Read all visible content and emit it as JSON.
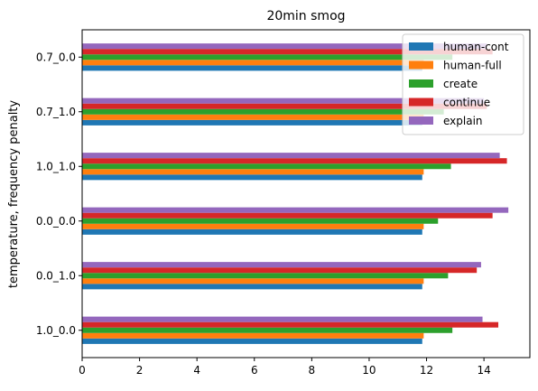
{
  "chart_data": {
    "type": "bar",
    "orientation": "horizontal",
    "title": "20min smog",
    "xlabel": "",
    "ylabel": "temperature, frequency penalty",
    "xlim": [
      0,
      15.6
    ],
    "xticks": [
      0,
      2,
      4,
      6,
      8,
      10,
      12,
      14
    ],
    "categories": [
      "1.0_0.0",
      "0.0_1.0",
      "0.0_0.0",
      "1.0_1.0",
      "0.7_1.0",
      "0.7_0.0"
    ],
    "series": [
      {
        "name": "human-cont",
        "color": "#1f77b4",
        "values": [
          11.85,
          11.85,
          11.85,
          11.85,
          11.85,
          11.85
        ]
      },
      {
        "name": "human-full",
        "color": "#ff7f0e",
        "values": [
          11.9,
          11.9,
          11.9,
          11.9,
          11.9,
          11.9
        ]
      },
      {
        "name": "create",
        "color": "#2ca02c",
        "values": [
          12.9,
          12.75,
          12.4,
          12.85,
          12.6,
          12.9
        ]
      },
      {
        "name": "continue",
        "color": "#d62728",
        "values": [
          14.5,
          13.75,
          14.3,
          14.8,
          14.1,
          14.3
        ]
      },
      {
        "name": "explain",
        "color": "#9467bd",
        "values": [
          13.95,
          13.9,
          14.85,
          14.55,
          14.0,
          14.1
        ]
      }
    ],
    "legend": "upper-right",
    "grid": false
  }
}
